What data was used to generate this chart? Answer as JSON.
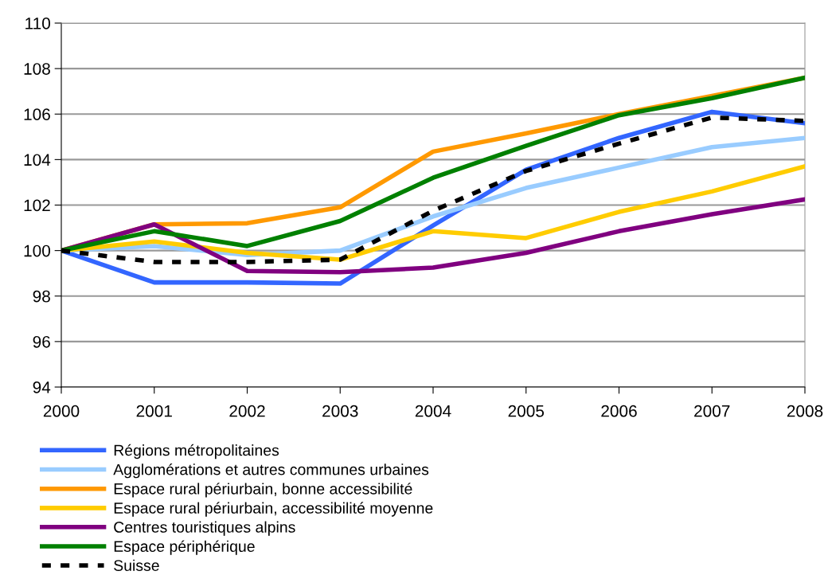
{
  "chart_data": {
    "type": "line",
    "x": [
      2000,
      2001,
      2002,
      2003,
      2004,
      2005,
      2006,
      2007,
      2008
    ],
    "xlim": [
      2000,
      2008
    ],
    "xticks": [
      2000,
      2001,
      2002,
      2003,
      2004,
      2005,
      2006,
      2007,
      2008
    ],
    "ylim": [
      94,
      110
    ],
    "yticks": [
      94,
      96,
      98,
      100,
      102,
      104,
      106,
      108,
      110
    ],
    "grid": "y",
    "legend": "bottom",
    "marker": "none",
    "series": [
      {
        "name": "Régions métropolitaines",
        "color": "#3366ff",
        "values": [
          100,
          98.6,
          98.6,
          98.55,
          101.1,
          103.55,
          104.95,
          106.1,
          105.6
        ]
      },
      {
        "name": "Agglomérations et autres communes urbaines",
        "color": "#99ccff",
        "values": [
          100,
          100.2,
          99.8,
          100.0,
          101.5,
          102.75,
          103.65,
          104.55,
          104.95
        ]
      },
      {
        "name": "Espace rural périurbain, bonne accessibilité",
        "color": "#ff9900",
        "values": [
          100,
          101.15,
          101.2,
          101.9,
          104.35,
          105.15,
          106.0,
          106.8,
          107.6
        ]
      },
      {
        "name": "Espace rural périurbain, accessibilité moyenne",
        "color": "#ffcc00",
        "values": [
          100,
          100.4,
          99.9,
          99.6,
          100.85,
          100.55,
          101.7,
          102.6,
          103.7
        ]
      },
      {
        "name": "Centres touristiques alpins",
        "color": "#800080",
        "values": [
          100,
          101.15,
          99.1,
          99.05,
          99.25,
          99.9,
          100.85,
          101.6,
          102.25
        ]
      },
      {
        "name": "Espace périphérique",
        "color": "#008000",
        "values": [
          100,
          100.85,
          100.2,
          101.3,
          103.2,
          104.6,
          105.95,
          106.7,
          107.6
        ]
      },
      {
        "name": "Suisse",
        "color": "#000000",
        "line_style": "dashed",
        "values": [
          100,
          99.5,
          99.5,
          99.6,
          101.75,
          103.5,
          104.7,
          105.85,
          105.7
        ]
      }
    ]
  }
}
